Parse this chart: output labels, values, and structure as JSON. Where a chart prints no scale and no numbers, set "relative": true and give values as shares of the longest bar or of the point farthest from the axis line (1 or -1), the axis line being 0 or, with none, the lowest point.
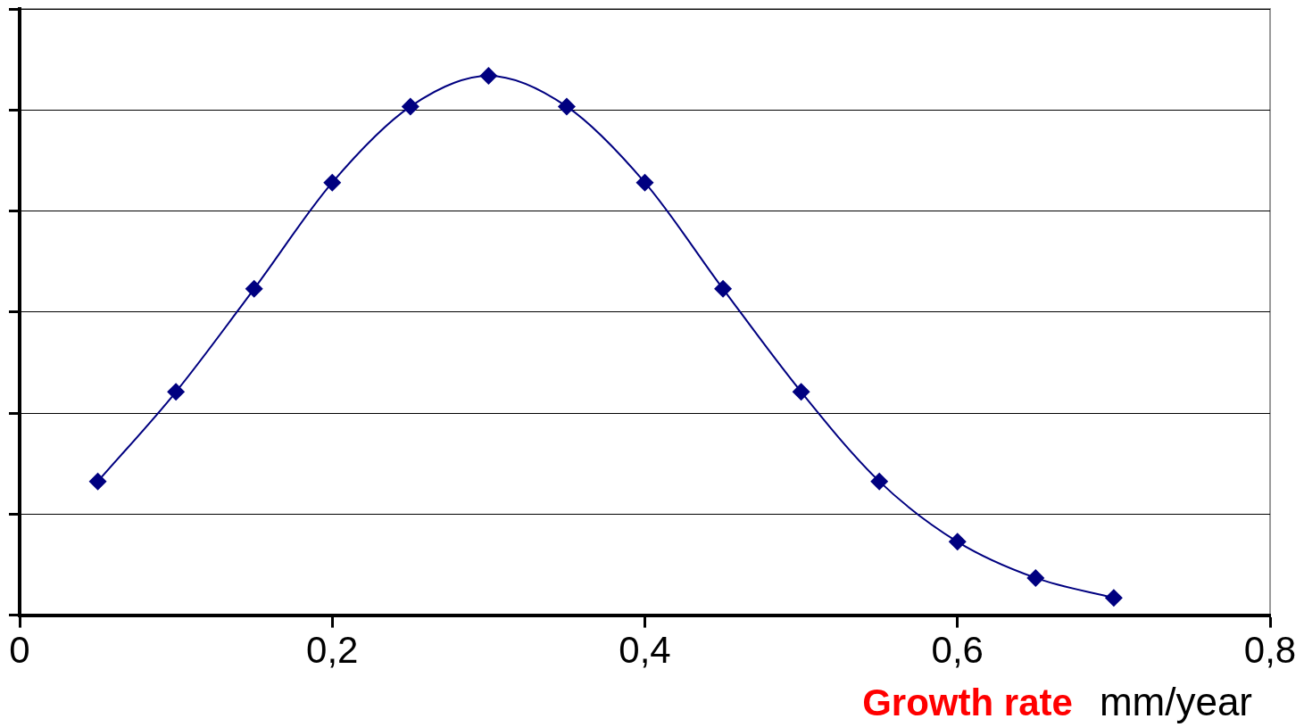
{
  "chart_data": {
    "type": "line",
    "relative": true,
    "xlabel": "Growth rate",
    "annotations": [
      "mm/year"
    ],
    "x": [
      0.05,
      0.1,
      0.15,
      0.2,
      0.25,
      0.3,
      0.35,
      0.4,
      0.45,
      0.5,
      0.55,
      0.6,
      0.65,
      0.7
    ],
    "series": [
      {
        "color": "#000080",
        "values": [
          0.248,
          0.414,
          0.605,
          0.802,
          0.943,
          1,
          0.943,
          0.802,
          0.605,
          0.414,
          0.248,
          0.136,
          0.069,
          0.032
        ]
      }
    ],
    "xlim": [
      0,
      0.8
    ],
    "xticks": [
      0,
      {
        "value": 0.2,
        "label": "0,2"
      },
      {
        "value": 0.4,
        "label": "0,4"
      },
      {
        "value": 0.6,
        "label": "0,6"
      },
      {
        "value": 0.8,
        "label": "0,8"
      }
    ],
    "grid": "y",
    "legend": false,
    "marker": "diamond",
    "line_style": "solid"
  }
}
